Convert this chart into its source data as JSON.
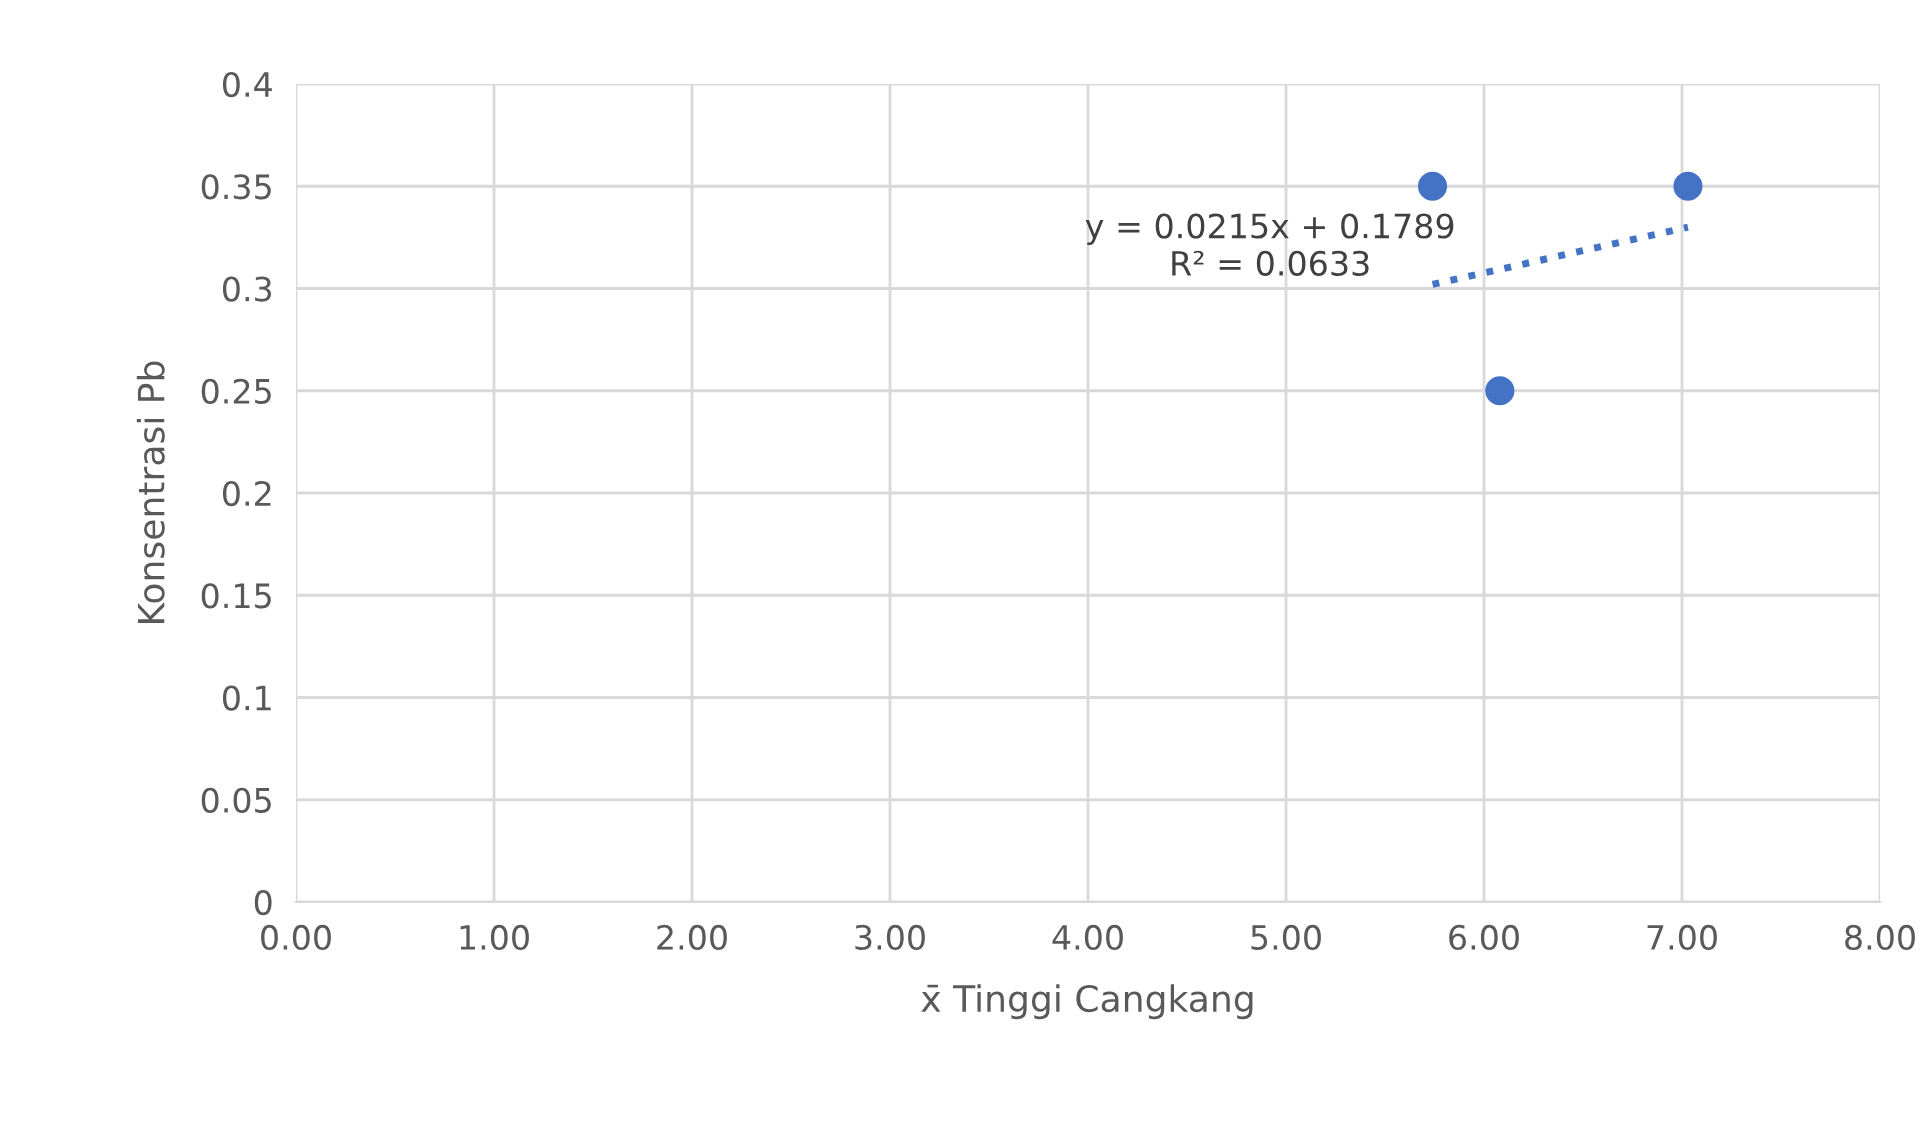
{
  "chart_data": {
    "type": "scatter",
    "xlabel": "x̄ Tinggi Cangkang",
    "ylabel": "Konsentrasi Pb",
    "series": [
      {
        "color": "#4472c4",
        "x": [
          5.74,
          6.08,
          7.03
        ],
        "values": [
          0.35,
          0.25,
          0.35
        ],
        "marker": "circle"
      },
      {
        "type": "line",
        "color": "#4472c4",
        "x": [
          5.74,
          7.03
        ],
        "values": [
          0.302,
          0.33
        ],
        "line_style": "dotted",
        "marker": "none"
      }
    ],
    "annotations": [
      "y = 0.0215x + 0.1789\nR² = 0.0633"
    ],
    "xlim": [
      0,
      8
    ],
    "xticks": [
      {
        "value": 0,
        "label": "0.00"
      },
      {
        "value": 1,
        "label": "1.00"
      },
      {
        "value": 2,
        "label": "2.00"
      },
      {
        "value": 3,
        "label": "3.00"
      },
      {
        "value": 4,
        "label": "4.00"
      },
      {
        "value": 5,
        "label": "5.00"
      },
      {
        "value": 6,
        "label": "6.00"
      },
      {
        "value": 7,
        "label": "7.00"
      },
      {
        "value": 8,
        "label": "8.00"
      }
    ],
    "ylim": [
      0,
      0.4
    ],
    "yticks": [
      0,
      0.05,
      0.1,
      0.15,
      0.2,
      0.25,
      0.3,
      0.35,
      0.4
    ],
    "grid": true,
    "legend": false
  }
}
